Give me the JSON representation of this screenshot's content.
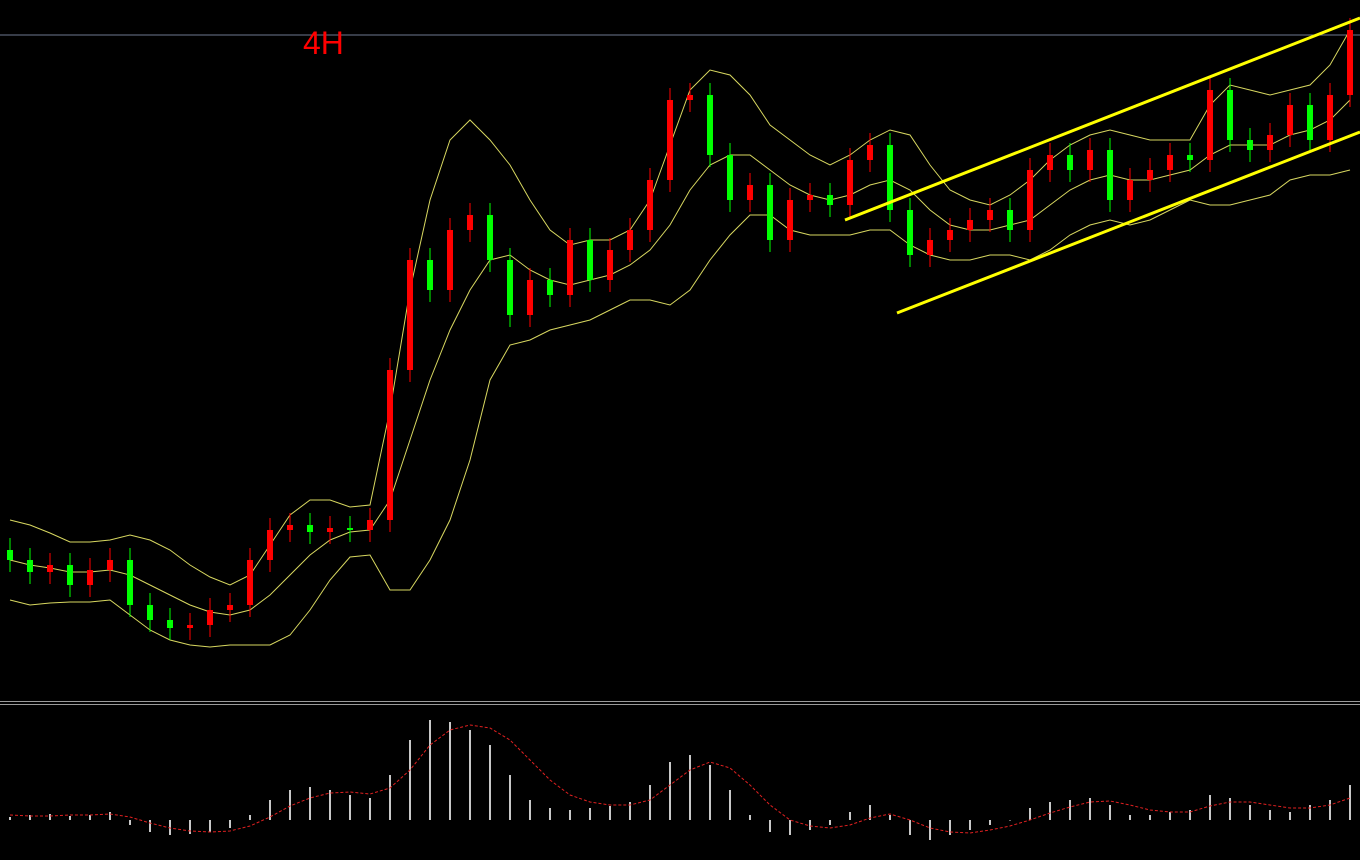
{
  "chart_data": [
    {
      "type": "candlestick",
      "title": "4H",
      "title_color": "#ff0000",
      "up_color": "#ff0000",
      "down_color": "#00ff00",
      "xlim": [
        -0.5,
        67.5
      ],
      "ylim": [
        0,
        700
      ],
      "price_line": 665,
      "price_line_color": "#6e7890",
      "open": [
        150,
        140,
        128,
        135,
        115,
        130,
        140,
        95,
        80,
        72,
        75,
        90,
        95,
        140,
        170,
        175,
        168,
        172,
        170,
        180,
        330,
        440,
        410,
        470,
        485,
        440,
        385,
        420,
        405,
        460,
        420,
        450,
        470,
        520,
        600,
        605,
        545,
        500,
        515,
        460,
        500,
        505,
        495,
        540,
        555,
        490,
        445,
        460,
        470,
        480,
        490,
        470,
        530,
        545,
        530,
        550,
        500,
        520,
        530,
        545,
        540,
        610,
        560,
        550,
        565,
        595,
        560,
        605
      ],
      "high": [
        162,
        152,
        147,
        147,
        142,
        152,
        152,
        107,
        92,
        87,
        102,
        107,
        152,
        182,
        187,
        187,
        184,
        184,
        192,
        342,
        452,
        452,
        482,
        497,
        497,
        452,
        432,
        432,
        472,
        472,
        462,
        482,
        532,
        612,
        617,
        617,
        557,
        527,
        527,
        512,
        517,
        517,
        552,
        567,
        567,
        502,
        472,
        482,
        492,
        502,
        502,
        542,
        557,
        557,
        562,
        562,
        532,
        542,
        557,
        557,
        622,
        622,
        572,
        577,
        607,
        607,
        617,
        682
      ],
      "low": [
        128,
        116,
        116,
        103,
        103,
        118,
        83,
        68,
        60,
        60,
        63,
        78,
        83,
        128,
        158,
        156,
        156,
        158,
        158,
        168,
        318,
        398,
        398,
        458,
        428,
        373,
        373,
        393,
        393,
        408,
        408,
        438,
        458,
        508,
        588,
        533,
        488,
        488,
        448,
        448,
        488,
        483,
        483,
        528,
        478,
        433,
        433,
        448,
        458,
        468,
        458,
        458,
        518,
        518,
        518,
        488,
        488,
        508,
        518,
        528,
        528,
        548,
        538,
        538,
        553,
        548,
        548,
        593
      ],
      "close": [
        140,
        128,
        135,
        115,
        130,
        140,
        95,
        80,
        72,
        75,
        90,
        95,
        140,
        170,
        175,
        168,
        172,
        170,
        180,
        330,
        440,
        410,
        470,
        485,
        440,
        385,
        420,
        405,
        460,
        420,
        450,
        470,
        520,
        600,
        605,
        545,
        500,
        515,
        460,
        500,
        505,
        495,
        540,
        555,
        490,
        445,
        460,
        470,
        480,
        490,
        470,
        530,
        545,
        530,
        550,
        500,
        520,
        530,
        545,
        540,
        610,
        560,
        550,
        565,
        595,
        560,
        605,
        670
      ],
      "bands": {
        "color": "#d8d860",
        "upper": [
          180,
          175,
          167,
          158,
          158,
          160,
          165,
          160,
          150,
          135,
          123,
          115,
          125,
          155,
          185,
          200,
          200,
          193,
          195,
          290,
          410,
          500,
          560,
          580,
          560,
          535,
          500,
          470,
          455,
          460,
          460,
          470,
          500,
          555,
          610,
          630,
          625,
          605,
          575,
          560,
          545,
          535,
          545,
          560,
          570,
          565,
          535,
          510,
          500,
          495,
          505,
          520,
          540,
          555,
          565,
          570,
          565,
          560,
          560,
          560,
          595,
          615,
          610,
          605,
          610,
          615,
          635,
          670
        ],
        "middle": [
          140,
          135,
          132,
          128,
          128,
          130,
          125,
          115,
          105,
          95,
          88,
          85,
          90,
          105,
          125,
          145,
          160,
          168,
          170,
          200,
          260,
          320,
          370,
          410,
          440,
          445,
          430,
          420,
          415,
          420,
          425,
          435,
          450,
          475,
          510,
          535,
          545,
          545,
          530,
          515,
          505,
          500,
          505,
          515,
          520,
          510,
          490,
          475,
          470,
          470,
          475,
          480,
          495,
          510,
          520,
          525,
          520,
          520,
          525,
          530,
          545,
          555,
          555,
          555,
          565,
          570,
          580,
          600
        ],
        "lower": [
          100,
          95,
          97,
          98,
          98,
          100,
          85,
          70,
          60,
          55,
          53,
          55,
          55,
          55,
          65,
          90,
          120,
          143,
          145,
          110,
          110,
          140,
          180,
          240,
          320,
          355,
          360,
          370,
          375,
          380,
          390,
          400,
          400,
          395,
          410,
          440,
          465,
          485,
          485,
          470,
          465,
          465,
          465,
          470,
          470,
          455,
          445,
          440,
          440,
          445,
          445,
          440,
          450,
          465,
          475,
          480,
          475,
          480,
          490,
          500,
          495,
          495,
          500,
          505,
          520,
          525,
          525,
          530
        ]
      },
      "trendlines": [
        {
          "color": "#ffff00",
          "x": [
            41.75,
            67.5
          ],
          "values": [
            480,
            682
          ]
        },
        {
          "color": "#ffff00",
          "x": [
            44.35,
            67.5
          ],
          "values": [
            387,
            568
          ]
        }
      ]
    },
    {
      "type": "bar",
      "color": "#c8c8c8",
      "xlim": [
        -0.5,
        67.5
      ],
      "ylim": [
        -40,
        115
      ],
      "values": [
        3,
        5,
        6,
        4,
        5,
        8,
        -5,
        -12,
        -15,
        -14,
        -12,
        -8,
        5,
        20,
        30,
        33,
        30,
        25,
        22,
        45,
        80,
        100,
        98,
        90,
        75,
        45,
        20,
        12,
        10,
        12,
        14,
        18,
        35,
        58,
        65,
        55,
        30,
        5,
        -12,
        -15,
        -10,
        -5,
        8,
        15,
        5,
        -15,
        -20,
        -15,
        -10,
        -5,
        0,
        12,
        18,
        20,
        22,
        15,
        5,
        5,
        8,
        10,
        25,
        22,
        15,
        10,
        8,
        15,
        20,
        35
      ],
      "signal": {
        "color": "#e02020",
        "values": [
          5,
          4,
          4,
          5,
          5,
          6,
          3,
          -3,
          -8,
          -11,
          -12,
          -11,
          -6,
          3,
          14,
          22,
          27,
          28,
          26,
          32,
          50,
          75,
          90,
          95,
          92,
          80,
          60,
          40,
          25,
          18,
          15,
          15,
          20,
          35,
          50,
          58,
          52,
          35,
          15,
          0,
          -6,
          -8,
          -5,
          2,
          6,
          0,
          -8,
          -12,
          -13,
          -10,
          -6,
          0,
          7,
          13,
          18,
          19,
          15,
          10,
          8,
          8,
          14,
          18,
          18,
          15,
          12,
          12,
          15,
          22
        ]
      }
    }
  ]
}
